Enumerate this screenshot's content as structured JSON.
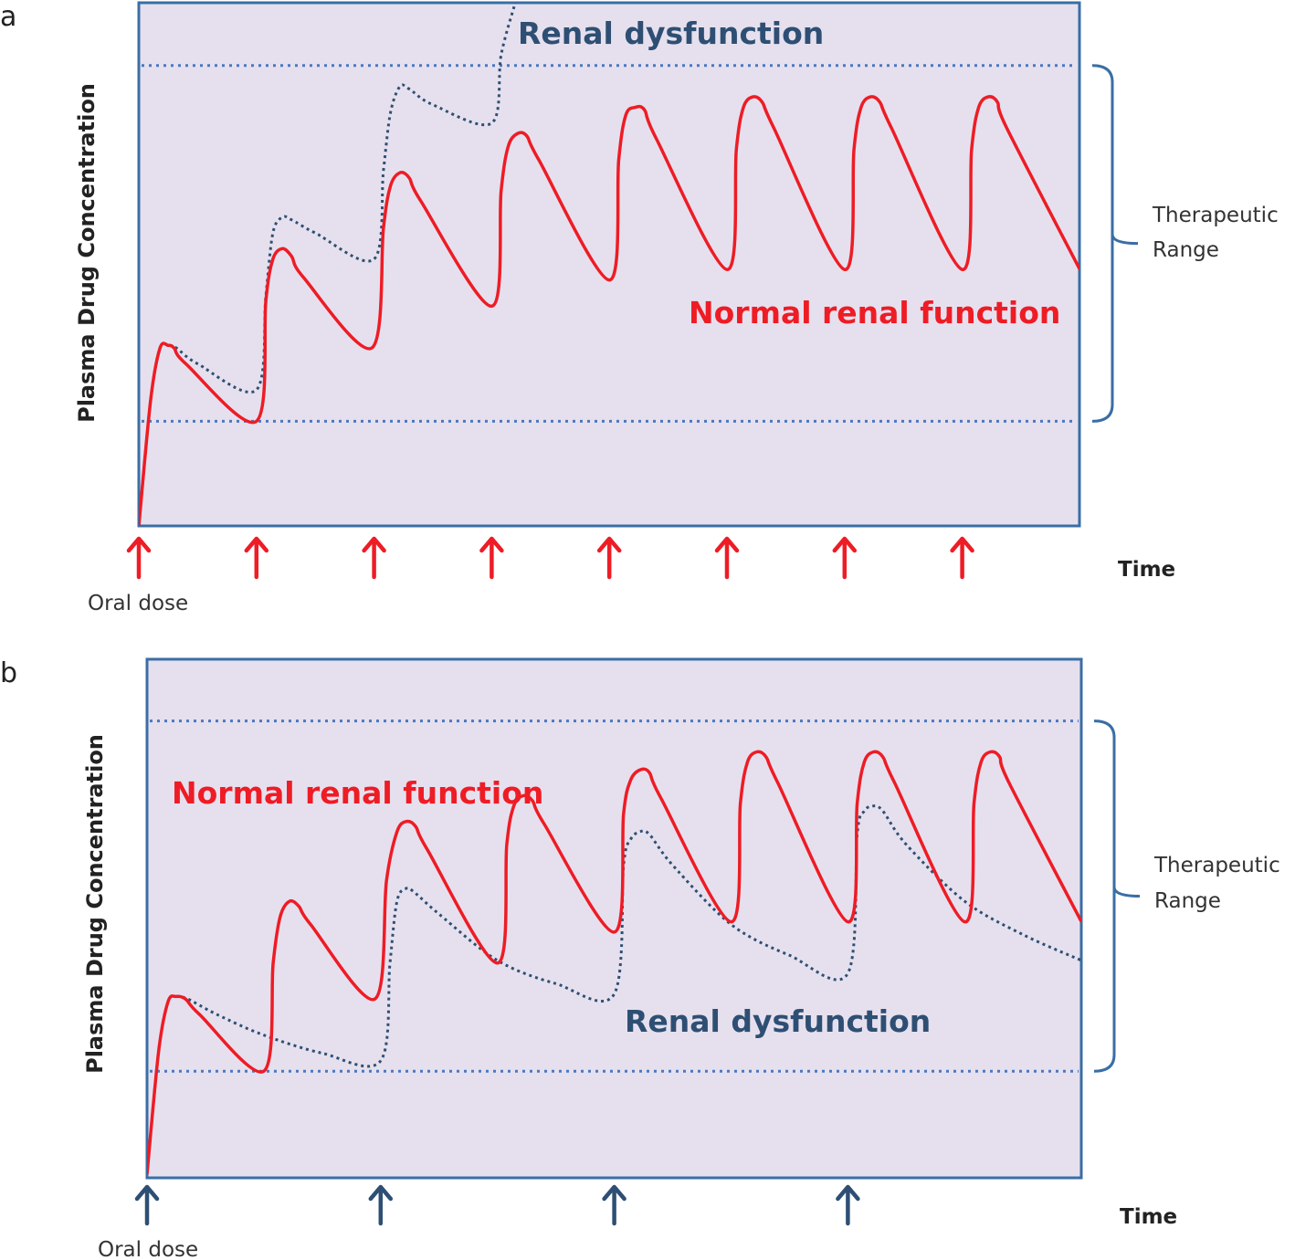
{
  "chart_data": [
    {
      "panel_label": "a",
      "type": "line",
      "ylabel": "Plasma Drug  Concentration",
      "xlabel": "Time",
      "dose_label": "Oral dose",
      "range_label": [
        "Therapeutic",
        "Range"
      ],
      "colors": {
        "background": "#e6e0ee",
        "frame": "#3a6ea5",
        "normal": "#ee1c25",
        "dysfunction": "#2e4f73",
        "range_lines": "#4a78c2",
        "dose_arrows": "#ee1c25"
      },
      "xlim": [
        0,
        8
      ],
      "ylim": [
        0,
        100
      ],
      "therapeutic_range": [
        20,
        88
      ],
      "dose_times": [
        0,
        1,
        2,
        3,
        4,
        5,
        6,
        7
      ],
      "series": [
        {
          "name": "Normal renal function",
          "style": "solid",
          "points": [
            [
              0,
              0
            ],
            [
              0.1,
              24
            ],
            [
              0.18,
              34
            ],
            [
              0.25,
              34.5
            ],
            [
              0.3,
              34
            ],
            [
              0.4,
              31
            ],
            [
              1,
              20
            ],
            [
              1.08,
              43
            ],
            [
              1.14,
              51
            ],
            [
              1.22,
              53
            ],
            [
              1.3,
              51.5
            ],
            [
              1.4,
              47.5
            ],
            [
              1.98,
              34
            ],
            [
              2.08,
              57
            ],
            [
              2.14,
              65
            ],
            [
              2.22,
              67.5
            ],
            [
              2.3,
              66.5
            ],
            [
              2.4,
              62
            ],
            [
              3,
              42
            ],
            [
              3.08,
              64
            ],
            [
              3.14,
              72.5
            ],
            [
              3.22,
              75
            ],
            [
              3.3,
              74.5
            ],
            [
              3.4,
              70
            ],
            [
              4,
              47
            ],
            [
              4.08,
              70
            ],
            [
              4.14,
              78.5
            ],
            [
              4.22,
              80
            ],
            [
              4.3,
              79.5
            ],
            [
              4.4,
              74
            ],
            [
              5,
              49
            ],
            [
              5.08,
              72
            ],
            [
              5.14,
              80
            ],
            [
              5.22,
              82
            ],
            [
              5.3,
              81
            ],
            [
              5.4,
              76
            ],
            [
              6,
              49
            ],
            [
              6.08,
              72
            ],
            [
              6.14,
              80
            ],
            [
              6.22,
              82
            ],
            [
              6.3,
              81
            ],
            [
              6.4,
              76
            ],
            [
              7,
              49
            ],
            [
              7.08,
              72
            ],
            [
              7.14,
              80
            ],
            [
              7.22,
              82
            ],
            [
              7.3,
              81
            ],
            [
              7.38,
              76
            ],
            [
              8,
              49
            ]
          ]
        },
        {
          "name": "Renal dysfunction",
          "style": "dotted",
          "points": [
            [
              0,
              0
            ],
            [
              0.1,
              24
            ],
            [
              0.18,
              34
            ],
            [
              0.25,
              34.5
            ],
            [
              0.32,
              34
            ],
            [
              0.5,
              31
            ],
            [
              1,
              26
            ],
            [
              1.08,
              44
            ],
            [
              1.14,
              56
            ],
            [
              1.22,
              59
            ],
            [
              1.3,
              58.5
            ],
            [
              1.5,
              56
            ],
            [
              2,
              51
            ],
            [
              2.08,
              68
            ],
            [
              2.14,
              79
            ],
            [
              2.22,
              84
            ],
            [
              2.3,
              83.5
            ],
            [
              2.5,
              80.5
            ],
            [
              3,
              77
            ],
            [
              3.08,
              90
            ],
            [
              3.2,
              100
            ]
          ]
        }
      ]
    },
    {
      "panel_label": "b",
      "type": "line",
      "ylabel": "Plasma Drug Concentration",
      "xlabel": "Time",
      "dose_label": "Oral dose",
      "range_label": [
        "Therapeutic",
        "Range"
      ],
      "colors": {
        "background": "#e6e0ee",
        "frame": "#3a6ea5",
        "normal": "#ee1c25",
        "dysfunction": "#2e4f73",
        "range_lines": "#4a78c2",
        "dose_arrows": "#2e4f73"
      },
      "xlim": [
        0,
        8
      ],
      "ylim": [
        0,
        100
      ],
      "therapeutic_range": [
        20,
        88
      ],
      "dose_times": [
        0,
        2,
        4,
        6
      ],
      "series": [
        {
          "name": "Normal renal function",
          "style": "solid",
          "points": [
            [
              0,
              0
            ],
            [
              0.1,
              24
            ],
            [
              0.18,
              33.5
            ],
            [
              0.25,
              34.5
            ],
            [
              0.33,
              34
            ],
            [
              0.45,
              31
            ],
            [
              1,
              20
            ],
            [
              1.08,
              41
            ],
            [
              1.14,
              50
            ],
            [
              1.22,
              53
            ],
            [
              1.3,
              52
            ],
            [
              1.4,
              48.5
            ],
            [
              1.95,
              34
            ],
            [
              2.05,
              57
            ],
            [
              2.14,
              66.5
            ],
            [
              2.22,
              68.5
            ],
            [
              2.3,
              67.5
            ],
            [
              2.4,
              63
            ],
            [
              3,
              41
            ],
            [
              3.08,
              64
            ],
            [
              3.14,
              71.5
            ],
            [
              3.22,
              73.5
            ],
            [
              3.3,
              72.5
            ],
            [
              3.4,
              68
            ],
            [
              4,
              47
            ],
            [
              4.08,
              70
            ],
            [
              4.14,
              76.5
            ],
            [
              4.22,
              78.5
            ],
            [
              4.3,
              78
            ],
            [
              4.4,
              73
            ],
            [
              5,
              49
            ],
            [
              5.08,
              72
            ],
            [
              5.14,
              80
            ],
            [
              5.22,
              82
            ],
            [
              5.3,
              81
            ],
            [
              5.4,
              76
            ],
            [
              6,
              49
            ],
            [
              6.08,
              72
            ],
            [
              6.14,
              80
            ],
            [
              6.22,
              82
            ],
            [
              6.3,
              81
            ],
            [
              6.4,
              76
            ],
            [
              7,
              49
            ],
            [
              7.08,
              72
            ],
            [
              7.14,
              80
            ],
            [
              7.22,
              82
            ],
            [
              7.3,
              81
            ],
            [
              7.38,
              76
            ],
            [
              8,
              49
            ]
          ]
        },
        {
          "name": "Renal dysfunction",
          "style": "dotted",
          "points": [
            [
              0,
              0
            ],
            [
              0.1,
              24
            ],
            [
              0.18,
              33.5
            ],
            [
              0.25,
              34.5
            ],
            [
              0.35,
              34
            ],
            [
              0.6,
              31
            ],
            [
              1,
              27
            ],
            [
              1.5,
              23.5
            ],
            [
              2,
              22
            ],
            [
              2.08,
              41
            ],
            [
              2.14,
              53
            ],
            [
              2.22,
              55.5
            ],
            [
              2.3,
              54.5
            ],
            [
              2.5,
              50.5
            ],
            [
              3,
              41.5
            ],
            [
              3.5,
              37
            ],
            [
              4,
              35
            ],
            [
              4.08,
              60
            ],
            [
              4.14,
              65
            ],
            [
              4.22,
              66.5
            ],
            [
              4.3,
              66
            ],
            [
              4.5,
              60
            ],
            [
              5,
              48.5
            ],
            [
              5.5,
              42.5
            ],
            [
              6,
              39
            ],
            [
              6.08,
              66
            ],
            [
              6.14,
              70.5
            ],
            [
              6.22,
              71.5
            ],
            [
              6.3,
              70.5
            ],
            [
              6.5,
              64
            ],
            [
              7,
              53
            ],
            [
              7.5,
              46.5
            ],
            [
              8,
              41.5
            ]
          ]
        }
      ]
    }
  ]
}
